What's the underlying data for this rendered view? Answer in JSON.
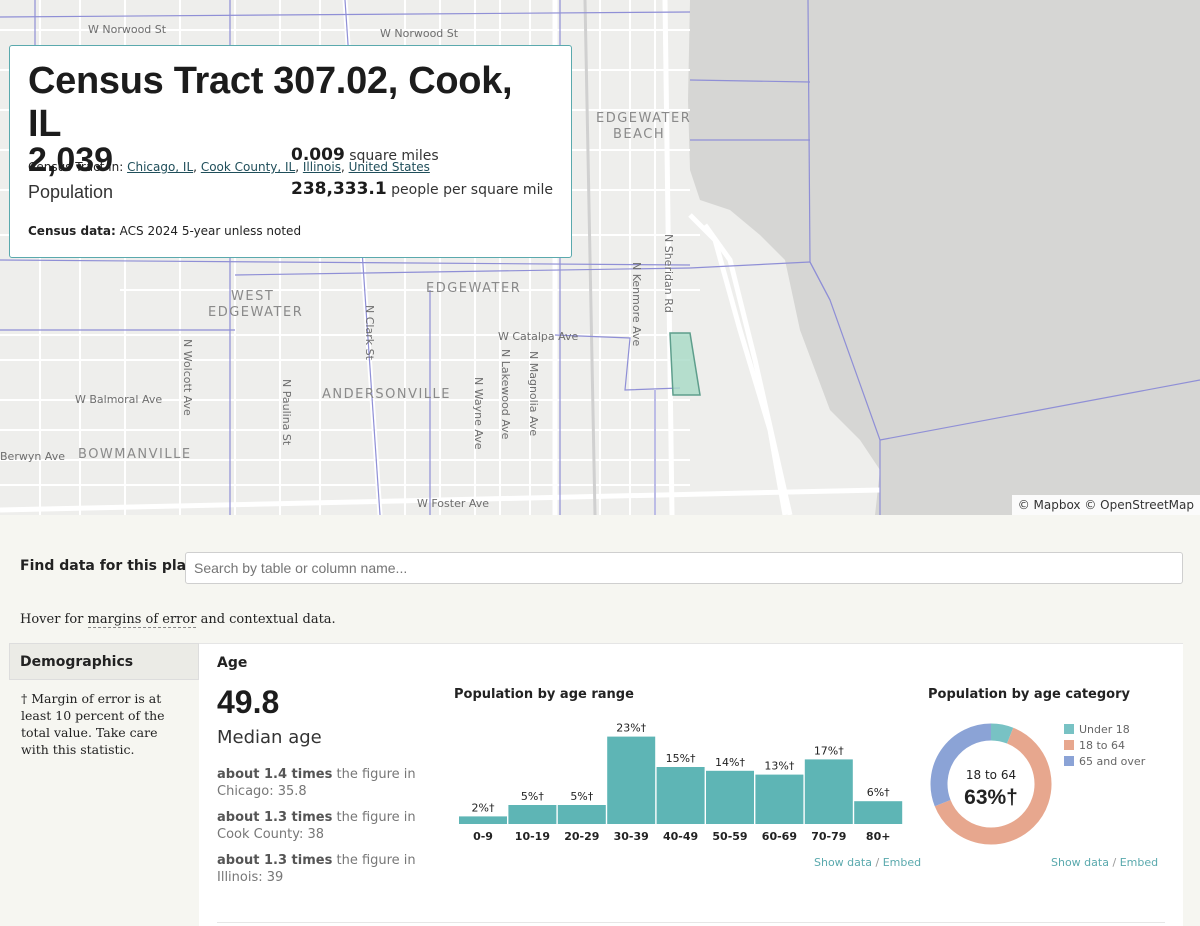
{
  "map": {
    "labels": [
      "W Norwood St",
      "W Norwood St",
      "EDGEWATER",
      "BEACH",
      "N Sheridan Rd",
      "N Kenmore Ave",
      "EDGEWATER",
      "WEST",
      "EDGEWATER",
      "N Clark St",
      "W Catalpa Ave",
      "N Lakewood Ave",
      "N Magnolia Ave",
      "N Wolcott Ave",
      "N Paulina St",
      "ANDERSONVILLE",
      "N Wayne Ave",
      "W Balmoral Ave",
      "Berwyn Ave",
      "BOWMANVILLE",
      "W Foster Ave"
    ],
    "attribution": "© Mapbox © OpenStreetMap",
    "colors": {
      "land": "#eeeeec",
      "water": "#d6d6d4",
      "road": "#ffffff",
      "boundary": "#8f8fd6",
      "highlight": "#9fd6c2"
    }
  },
  "header": {
    "title": "Census Tract 307.02, Cook, IL",
    "tract_in_label": "Census Tract in:",
    "parents": [
      "Chicago, IL",
      "Cook County, IL",
      "Illinois",
      "United States"
    ],
    "population_value": "2,039",
    "population_label": "Population",
    "area_value": "0.009",
    "area_label": "square miles",
    "density_value": "238,333.1",
    "density_label": "people per square mile",
    "census_data_label": "Census data:",
    "census_data_value": "ACS 2024 5-year unless noted"
  },
  "search": {
    "label": "Find data for this place",
    "placeholder": "Search by table or column name..."
  },
  "hover_note": {
    "prefix": "Hover for ",
    "link": "margins of error",
    "suffix": " and contextual data."
  },
  "sidebar": {
    "tab": "Demographics",
    "moe_note": "† Margin of error is at least 10 percent of the total value. Take care with this statistic."
  },
  "age": {
    "section_title": "Age",
    "median_value": "49.8",
    "median_label": "Median age",
    "comparisons": [
      {
        "ratio": "about 1.4 times",
        "text": " the figure in Chicago: 35.8"
      },
      {
        "ratio": "about 1.3 times",
        "text": " the figure in Cook County: 38"
      },
      {
        "ratio": "about 1.3 times",
        "text": " the figure in Illinois: 39"
      }
    ],
    "show_data": "Show data",
    "embed": "Embed",
    "sep": "/"
  },
  "chart_data": [
    {
      "type": "bar",
      "title": "Population by age range",
      "categories": [
        "0-9",
        "10-19",
        "20-29",
        "30-39",
        "40-49",
        "50-59",
        "60-69",
        "70-79",
        "80+"
      ],
      "values": [
        2,
        5,
        5,
        23,
        15,
        14,
        13,
        17,
        6
      ],
      "labels": [
        "2%†",
        "5%†",
        "5%†",
        "23%†",
        "15%†",
        "14%†",
        "13%†",
        "17%†",
        "6%†"
      ],
      "ylim": [
        0,
        25
      ],
      "color": "#5eb5b5"
    },
    {
      "type": "pie",
      "title": "Population by age category",
      "categories": [
        "Under 18",
        "18 to 64",
        "65 and over"
      ],
      "values": [
        6,
        63,
        31
      ],
      "colors": [
        "#78c2c4",
        "#e7a78e",
        "#8ba3d6"
      ],
      "center_label": "18 to 64",
      "center_value": "63%†"
    }
  ]
}
